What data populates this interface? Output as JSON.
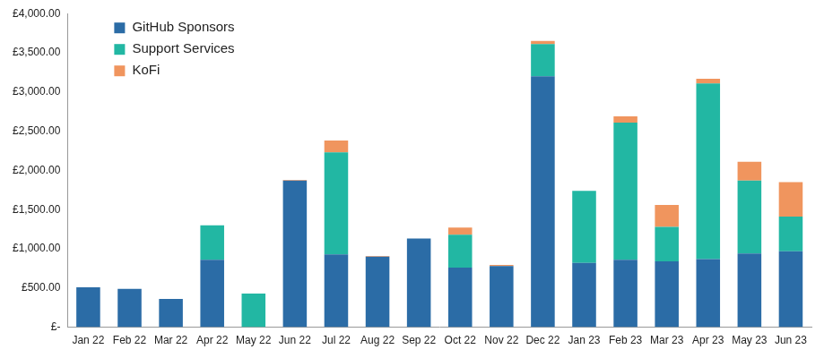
{
  "chart_data": {
    "type": "bar",
    "stacked": true,
    "grid": false,
    "legend": "upper left",
    "categories": [
      "Jan 22",
      "Feb 22",
      "Mar 22",
      "Apr 22",
      "May 22",
      "Jun 22",
      "Jul 22",
      "Aug 22",
      "Sep 22",
      "Oct 22",
      "Nov 22",
      "Dec 22",
      "Jan 23",
      "Feb 23",
      "Mar 23",
      "Apr 23",
      "May 23",
      "Jun 23"
    ],
    "series": [
      {
        "name": "GitHub Sponsors",
        "color": "#2b6ca6",
        "values": [
          510,
          490,
          360,
          860,
          0,
          1870,
          930,
          900,
          1130,
          760,
          780,
          3200,
          820,
          860,
          840,
          870,
          940,
          970
        ]
      },
      {
        "name": "Support Services",
        "color": "#22b7a3",
        "values": [
          0,
          0,
          0,
          440,
          430,
          0,
          1300,
          0,
          0,
          420,
          0,
          410,
          920,
          1750,
          440,
          2240,
          930,
          440
        ]
      },
      {
        "name": "KoFi",
        "color": "#f0955e",
        "values": [
          0,
          0,
          0,
          0,
          0,
          10,
          150,
          10,
          0,
          90,
          15,
          40,
          0,
          80,
          280,
          60,
          240,
          440
        ]
      }
    ],
    "ylim": [
      0,
      4000
    ],
    "yticks": [
      {
        "value": 0,
        "label": "£-"
      },
      {
        "value": 500,
        "label": "£500.00"
      },
      {
        "value": 1000,
        "label": "£1,000.00"
      },
      {
        "value": 1500,
        "label": "£1,500.00"
      },
      {
        "value": 2000,
        "label": "£2,000.00"
      },
      {
        "value": 2500,
        "label": "£2,500.00"
      },
      {
        "value": 3000,
        "label": "£3,000.00"
      },
      {
        "value": 3500,
        "label": "£3,500.00"
      },
      {
        "value": 4000,
        "label": "£4,000.00"
      }
    ]
  }
}
